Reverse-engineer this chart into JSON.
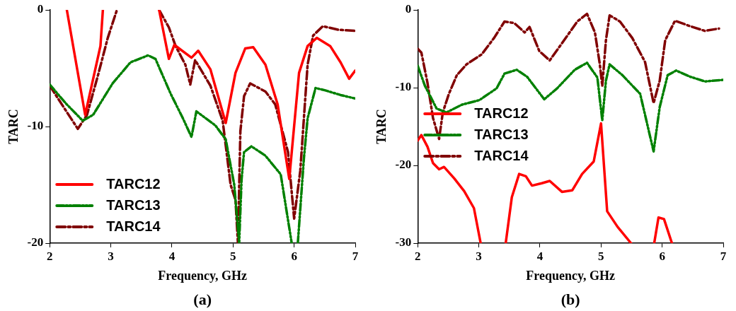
{
  "chart_data": [
    {
      "type": "line",
      "xlabel": "Frequency, GHz",
      "ylabel": "TARC",
      "annotations": [
        "(a)"
      ],
      "xlim": [
        2,
        7
      ],
      "xticks": [
        2,
        3,
        4,
        5,
        6,
        7
      ],
      "ylim": [
        -20,
        0
      ],
      "yticks": [
        0,
        -10,
        -20
      ],
      "grid": false,
      "legend": "bottom left",
      "marker": "none",
      "series": [
        {
          "name": "TARC12",
          "color": "#ff0000",
          "line_style": "solid",
          "x": [
            2.28,
            2.58,
            2.83,
            2.87,
            3.3,
            3.79,
            3.95,
            4.04,
            4.32,
            4.43,
            4.63,
            4.88,
            5.04,
            5.2,
            5.33,
            5.53,
            5.73,
            5.92,
            6.08,
            6.22,
            6.37,
            6.59,
            6.76,
            6.9,
            7
          ],
          "values": [
            0,
            -9.0,
            -3.1,
            0,
            null,
            0,
            -4.2,
            -3.0,
            -4.1,
            -3.5,
            -5.1,
            -9.7,
            -5.4,
            -3.3,
            -3.2,
            -4.7,
            -8.1,
            -14.5,
            -5.4,
            -3.1,
            -2.4,
            -3.1,
            -4.5,
            -5.9,
            -5.2
          ]
        },
        {
          "name": "TARC13",
          "color": "#008000",
          "line_style": "dotted",
          "x": [
            2,
            2.26,
            2.54,
            2.71,
            3.03,
            3.32,
            3.61,
            3.73,
            3.98,
            4.18,
            4.32,
            4.4,
            4.71,
            4.88,
            5.02,
            5.1,
            5.14,
            5.18,
            5.3,
            5.53,
            5.78,
            5.96,
            6.01,
            6.06,
            6.16,
            6.22,
            6.35,
            6.51,
            6.76,
            7
          ],
          "values": [
            -6.4,
            -8.0,
            -9.5,
            -9.0,
            -6.3,
            -4.5,
            -3.9,
            -4.2,
            -7.2,
            -9.3,
            -10.9,
            -8.7,
            -9.9,
            -11.1,
            -15.0,
            -20,
            -14.5,
            -12.2,
            -11.7,
            -12.5,
            -14.1,
            -20,
            null,
            -20,
            -12.7,
            -9.3,
            -6.7,
            -6.9,
            -7.3,
            -7.6
          ]
        },
        {
          "name": "TARC14",
          "color": "#800000",
          "line_style": "dashed",
          "x": [
            2,
            2.26,
            2.46,
            2.61,
            2.79,
            2.95,
            3.1,
            3.4,
            3.79,
            3.95,
            4.06,
            4.22,
            4.3,
            4.38,
            4.63,
            4.83,
            4.96,
            5.04,
            5.08,
            5.12,
            5.18,
            5.28,
            5.53,
            5.69,
            5.9,
            6.0,
            6.1,
            6.22,
            6.31,
            6.47,
            6.72,
            7
          ],
          "values": [
            -6.5,
            -8.6,
            -10.2,
            -9.0,
            -5.6,
            -2.4,
            0,
            null,
            0,
            -1.5,
            -3.1,
            -4.7,
            -6.4,
            -4.3,
            -6.5,
            -9.5,
            -15,
            -16.3,
            -20,
            -10.4,
            -7.4,
            -6.3,
            -7.0,
            -8.1,
            -12.2,
            -17.9,
            -13.8,
            -4.7,
            -2.2,
            -1.4,
            -1.7,
            -1.8
          ]
        }
      ]
    },
    {
      "type": "line",
      "xlabel": "Frequency, GHz",
      "ylabel": "TARC",
      "annotations": [
        "(b)"
      ],
      "xlim": [
        2,
        7
      ],
      "xticks": [
        2,
        3,
        4,
        5,
        6,
        7
      ],
      "ylim": [
        -30,
        0
      ],
      "yticks": [
        0,
        -10,
        -20,
        -30
      ],
      "grid": false,
      "legend": "left",
      "marker": "none",
      "series": [
        {
          "name": "TARC12",
          "color": "#ff0000",
          "line_style": "solid",
          "x": [
            2,
            2.06,
            2.16,
            2.25,
            2.35,
            2.43,
            2.6,
            2.76,
            2.92,
            3.03,
            3.2,
            3.44,
            3.54,
            3.66,
            3.77,
            3.87,
            4.03,
            4.16,
            4.36,
            4.53,
            4.69,
            4.88,
            5.0,
            5.1,
            5.27,
            5.49,
            5.7,
            5.87,
            5.94,
            6.03,
            6.16
          ],
          "values": [
            -16.8,
            -16.1,
            -17.6,
            -19.7,
            -20.5,
            -20.2,
            -21.7,
            -23.3,
            -25.5,
            -30,
            null,
            -30,
            -24.1,
            -21.1,
            -21.4,
            -22.6,
            -22.3,
            -22.0,
            -23.4,
            -23.2,
            -21.1,
            -19.5,
            -14.6,
            -25.9,
            -27.9,
            -30,
            null,
            -30,
            -26.7,
            -26.9,
            -30
          ]
        },
        {
          "name": "TARC13",
          "color": "#008000",
          "line_style": "dotted",
          "x": [
            2,
            2.12,
            2.31,
            2.47,
            2.72,
            3.01,
            3.29,
            3.42,
            3.62,
            3.79,
            4.07,
            4.28,
            4.57,
            4.77,
            4.94,
            5.02,
            5.08,
            5.14,
            5.35,
            5.64,
            5.86,
            5.96,
            6.09,
            6.23,
            6.46,
            6.7,
            7
          ],
          "values": [
            -7.2,
            -9.8,
            -12.7,
            -13.2,
            -12.2,
            -11.6,
            -10.1,
            -8.2,
            -7.7,
            -8.6,
            -11.5,
            -10.1,
            -7.7,
            -6.8,
            -8.7,
            -14.2,
            -9.1,
            -7.0,
            -8.4,
            -10.8,
            -18.2,
            -12.5,
            -8.4,
            -7.8,
            -8.6,
            -9.2,
            -9.0
          ]
        },
        {
          "name": "TARC14",
          "color": "#800000",
          "line_style": "dashed",
          "x": [
            2,
            2.06,
            2.16,
            2.25,
            2.35,
            2.41,
            2.51,
            2.64,
            2.8,
            3.05,
            3.25,
            3.42,
            3.58,
            3.75,
            3.83,
            3.99,
            4.16,
            4.36,
            4.61,
            4.77,
            4.9,
            4.98,
            5.02,
            5.08,
            5.14,
            5.31,
            5.51,
            5.72,
            5.86,
            5.96,
            6.05,
            6.21,
            6.46,
            6.7,
            6.93
          ],
          "values": [
            -5.0,
            -5.5,
            -9.4,
            -13.9,
            -16.6,
            -13.2,
            -10.8,
            -8.4,
            -7.0,
            -5.7,
            -3.6,
            -1.5,
            -1.7,
            -2.9,
            -2.2,
            -5.3,
            -6.5,
            -4.3,
            -1.5,
            -0.5,
            -2.9,
            -7.0,
            -9.8,
            -3.9,
            -0.7,
            -1.5,
            -3.6,
            -6.7,
            -12.0,
            -9.1,
            -3.9,
            -1.4,
            -2.1,
            -2.7,
            -2.4
          ]
        }
      ]
    }
  ]
}
